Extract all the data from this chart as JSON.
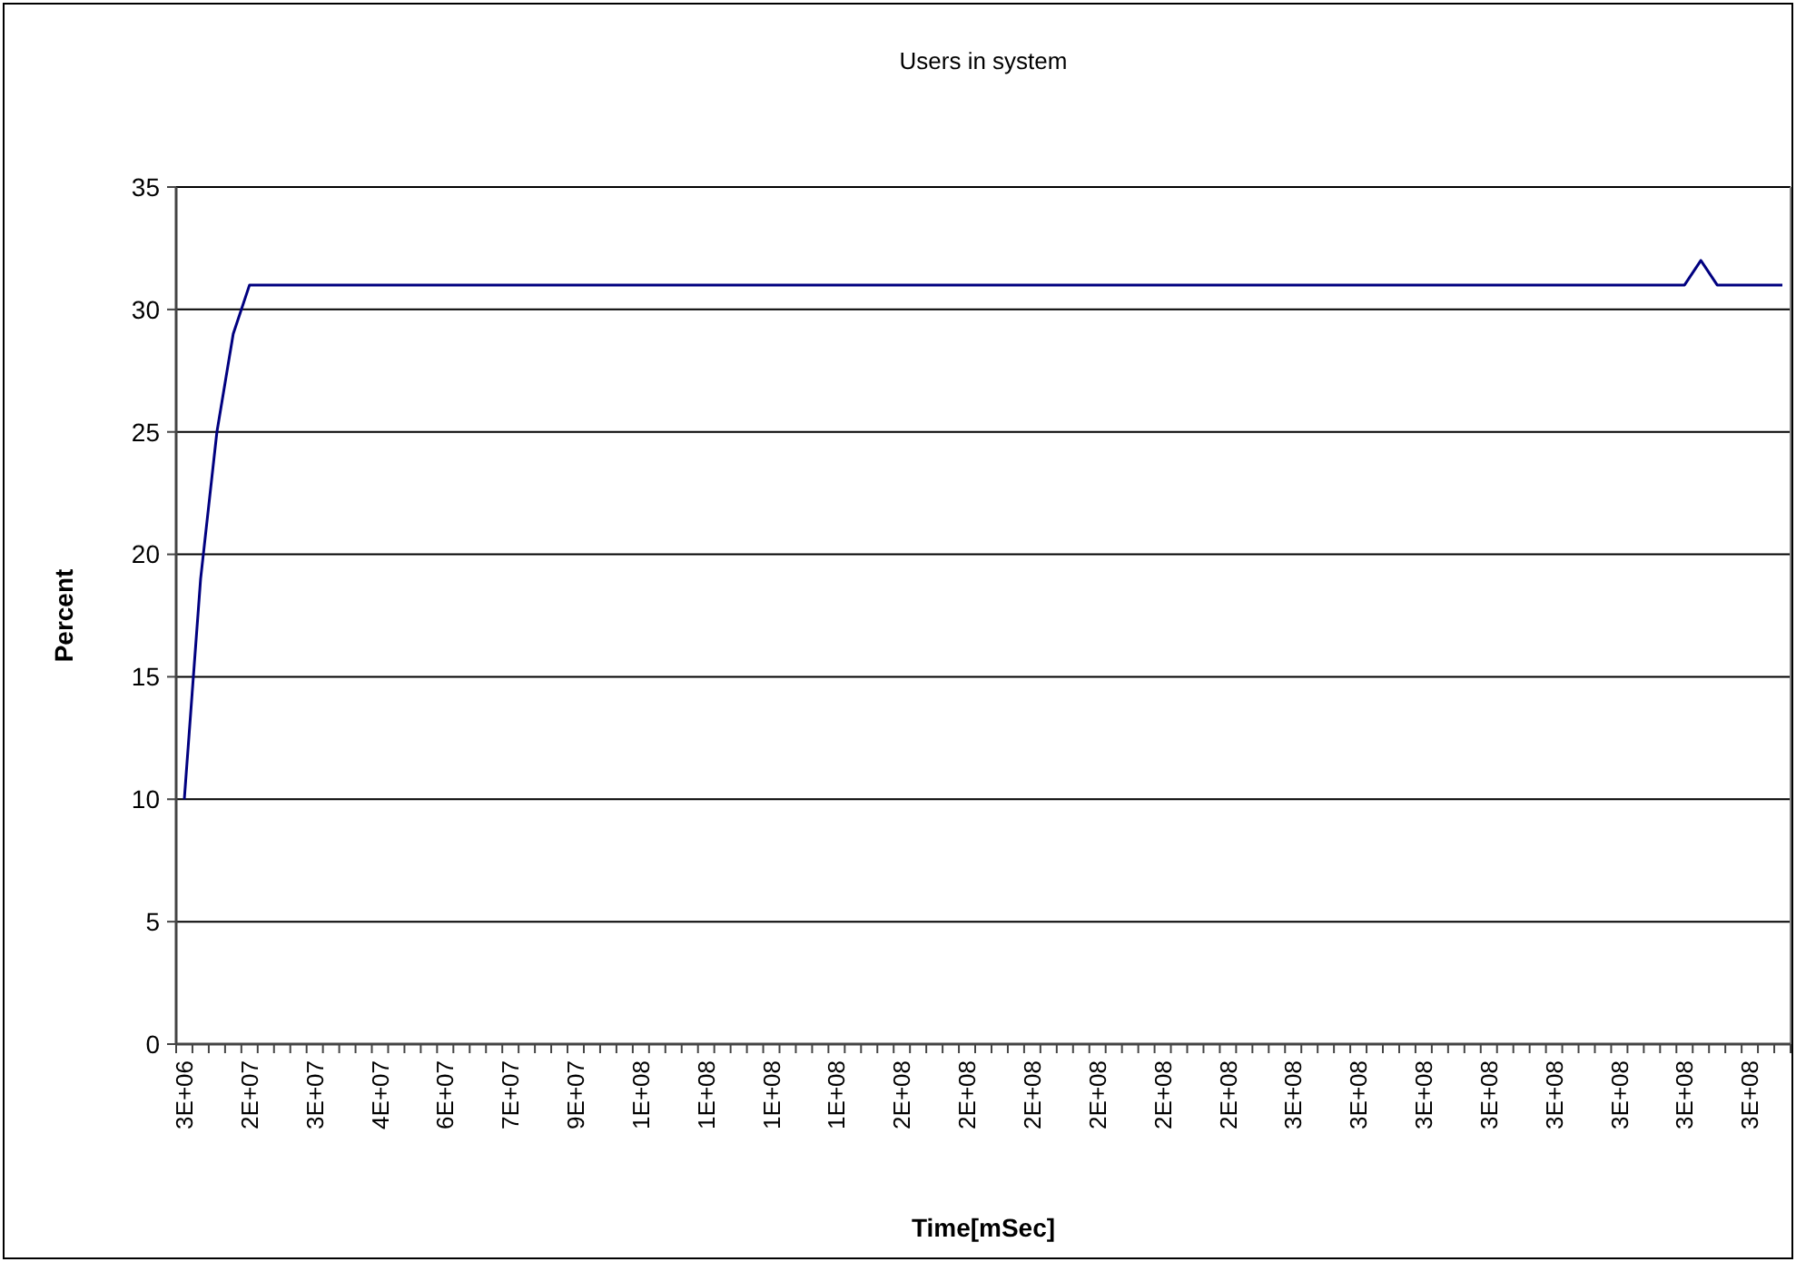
{
  "chart_data": {
    "type": "line",
    "title": "Users in system",
    "xlabel": "Time[mSec]",
    "ylabel": "Percent",
    "categories": [
      "3E+06",
      null,
      null,
      null,
      "2E+07",
      null,
      null,
      null,
      "3E+07",
      null,
      null,
      null,
      "4E+07",
      null,
      null,
      null,
      "6E+07",
      null,
      null,
      null,
      "7E+07",
      null,
      null,
      null,
      "9E+07",
      null,
      null,
      null,
      "1E+08",
      null,
      null,
      null,
      "1E+08",
      null,
      null,
      null,
      "1E+08",
      null,
      null,
      null,
      "1E+08",
      null,
      null,
      null,
      "2E+08",
      null,
      null,
      null,
      "2E+08",
      null,
      null,
      null,
      "2E+08",
      null,
      null,
      null,
      "2E+08",
      null,
      null,
      null,
      "2E+08",
      null,
      null,
      null,
      "2E+08",
      null,
      null,
      null,
      "3E+08",
      null,
      null,
      null,
      "3E+08",
      null,
      null,
      null,
      "3E+08",
      null,
      null,
      null,
      "3E+08",
      null,
      null,
      null,
      "3E+08",
      null,
      null,
      null,
      "3E+08",
      null,
      null,
      null,
      "3E+08",
      null,
      null,
      null,
      "3E+08",
      null,
      null
    ],
    "series": [
      {
        "color": "#000080",
        "values": [
          10,
          19,
          25,
          29,
          31,
          31,
          31,
          31,
          31,
          31,
          31,
          31,
          31,
          31,
          31,
          31,
          31,
          31,
          31,
          31,
          31,
          31,
          31,
          31,
          31,
          31,
          31,
          31,
          31,
          31,
          31,
          31,
          31,
          31,
          31,
          31,
          31,
          31,
          31,
          31,
          31,
          31,
          31,
          31,
          31,
          31,
          31,
          31,
          31,
          31,
          31,
          31,
          31,
          31,
          31,
          31,
          31,
          31,
          31,
          31,
          31,
          31,
          31,
          31,
          31,
          31,
          31,
          31,
          31,
          31,
          31,
          31,
          31,
          31,
          31,
          31,
          31,
          31,
          31,
          31,
          31,
          31,
          31,
          31,
          31,
          31,
          31,
          31,
          31,
          31,
          31,
          31,
          31,
          32,
          31,
          31,
          31,
          31,
          31
        ]
      }
    ],
    "ylim": [
      0,
      35
    ],
    "yticks": [
      0,
      5,
      10,
      15,
      20,
      25,
      30,
      35
    ],
    "grid": "y",
    "marker": "none",
    "line_style": "solid"
  }
}
